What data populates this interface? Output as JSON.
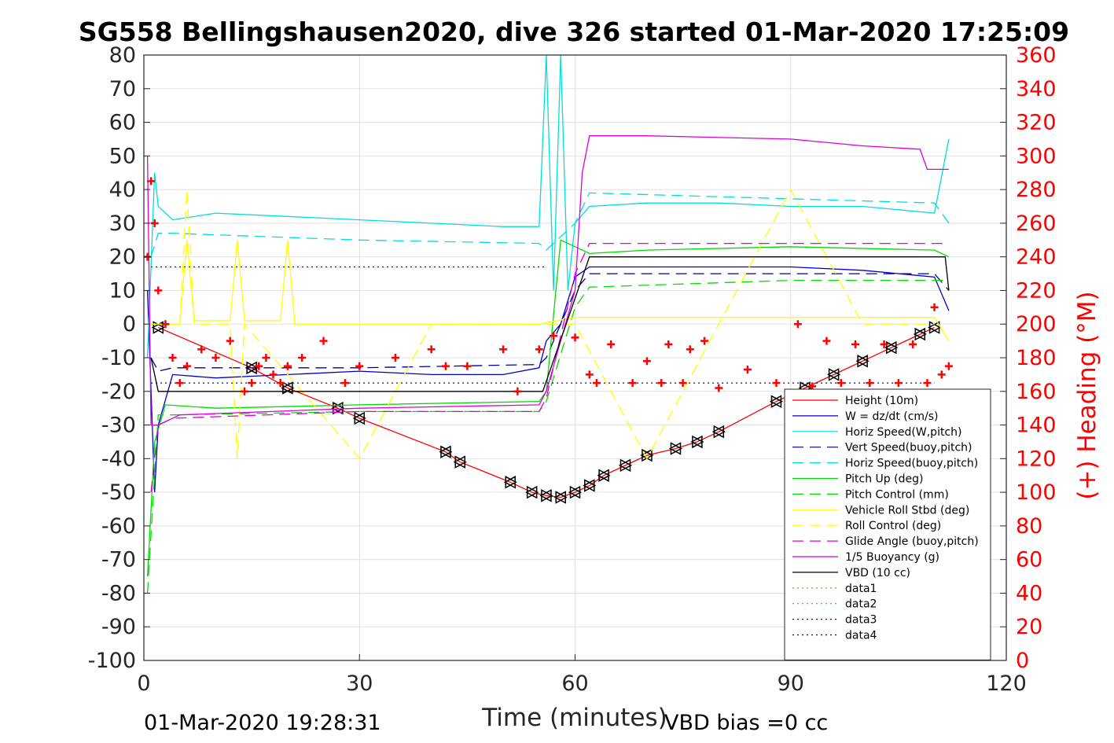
{
  "chart_data": {
    "type": "line",
    "title": "SG558 Bellingshausen2020, dive 326 started 01-Mar-2020 17:25:09",
    "xlabel": "Time (minutes)",
    "ylabel": "",
    "y2label": "(+) Heading (°M)",
    "xlim": [
      0,
      120
    ],
    "ylim": [
      -100,
      80
    ],
    "y2lim": [
      0,
      360
    ],
    "xticks": [
      0,
      30,
      60,
      90,
      120
    ],
    "yticks": [
      80,
      70,
      60,
      50,
      40,
      30,
      20,
      10,
      0,
      -10,
      -20,
      -30,
      -40,
      -50,
      -60,
      -70,
      -80,
      -90,
      -100
    ],
    "y2ticks": [
      360,
      340,
      320,
      300,
      280,
      260,
      240,
      220,
      200,
      180,
      160,
      140,
      120,
      100,
      80,
      60,
      40,
      20,
      0
    ],
    "grid": true,
    "legend_position": "bottom-right",
    "footer_left": "01-Mar-2020 19:28:31",
    "footer_right": "VBD bias =0 cc",
    "series": [
      {
        "name": "Height (10m)",
        "color": "#ff0000",
        "style": "solid",
        "marker": "triangle",
        "x": [
          2,
          15,
          20,
          27,
          30,
          42,
          44,
          51,
          54,
          56,
          58,
          60,
          62,
          64,
          67,
          70,
          74,
          77,
          80,
          88,
          92,
          96,
          100,
          104,
          108,
          110
        ],
        "y": [
          -1,
          -13,
          -19,
          -25,
          -28,
          -38,
          -41,
          -47,
          -50,
          -51,
          -51.5,
          -50,
          -48,
          -45,
          -42,
          -39,
          -37,
          -35,
          -32,
          -23,
          -19,
          -15,
          -11,
          -7,
          -3,
          -1
        ]
      },
      {
        "name": "W = dz/dt (cm/s)",
        "color": "#0000cc",
        "style": "solid",
        "x": [
          0.5,
          1.5,
          2,
          4,
          10,
          20,
          30,
          40,
          50,
          55,
          56,
          58,
          60,
          62,
          70,
          80,
          90,
          100,
          110,
          112
        ],
        "y": [
          10,
          -50,
          -30,
          -15,
          -16,
          -15,
          -14,
          -15,
          -15,
          -13,
          -5,
          0,
          14,
          17,
          17,
          17,
          17,
          16,
          14,
          4
        ]
      },
      {
        "name": "Horiz Speed(W,pitch)",
        "color": "#00dddd",
        "style": "solid",
        "x": [
          0.5,
          1.5,
          2,
          4,
          10,
          20,
          30,
          40,
          50,
          55,
          56,
          57,
          58,
          59,
          60,
          62,
          70,
          80,
          90,
          100,
          110,
          112
        ],
        "y": [
          -10,
          45,
          35,
          31,
          33,
          32,
          31,
          30,
          29,
          29,
          80,
          10,
          80,
          10,
          30,
          35,
          36,
          36,
          35,
          35,
          33,
          55
        ]
      },
      {
        "name": "Vert Speed(buoy,pitch)",
        "color": "#000099",
        "style": "dashed",
        "x": [
          1,
          2,
          4,
          30,
          55,
          56,
          60,
          62,
          110,
          112
        ],
        "y": [
          -10,
          -14,
          -13,
          -13,
          -12,
          -10,
          10,
          15,
          15,
          10
        ]
      },
      {
        "name": "Horiz Speed(buoy,pitch)",
        "color": "#00dddd",
        "style": "dashed",
        "x": [
          1,
          2,
          4,
          30,
          55,
          56,
          60,
          62,
          110,
          112
        ],
        "y": [
          20,
          27,
          27,
          25,
          24,
          22,
          30,
          39,
          36,
          30
        ]
      },
      {
        "name": "Pitch Up (deg)",
        "color": "#00dd00",
        "style": "solid",
        "x": [
          0.5,
          1.5,
          3,
          10,
          30,
          55,
          56,
          58,
          62,
          70,
          90,
          110,
          112
        ],
        "y": [
          -75,
          -35,
          -24,
          -25,
          -24,
          -23,
          -20,
          25,
          21,
          22,
          23,
          22,
          20
        ]
      },
      {
        "name": "Pitch Control (mm)",
        "color": "#00dd00",
        "style": "dashed",
        "x": [
          0.5,
          2,
          4,
          30,
          55,
          56,
          60,
          62,
          90,
          110,
          112
        ],
        "y": [
          -80,
          -27,
          -27,
          -26,
          -26,
          -23,
          5,
          11,
          13,
          13,
          13
        ]
      },
      {
        "name": "Vehicle Roll Stbd (deg)",
        "color": "#ffff00",
        "style": "solid",
        "x": [
          0,
          5,
          6,
          7,
          12,
          13,
          14,
          19,
          20,
          21,
          30,
          40,
          50,
          55,
          60,
          70,
          80,
          90,
          100,
          110,
          112
        ],
        "y": [
          0,
          0,
          25,
          1,
          1,
          25,
          1,
          1,
          25,
          0,
          0,
          0,
          0,
          0,
          2,
          2,
          2,
          2,
          2,
          2,
          -5
        ]
      },
      {
        "name": "Roll Control (deg)",
        "color": "#ffff00",
        "style": "dashed",
        "x": [
          0,
          5,
          6,
          7,
          12,
          13,
          14,
          30,
          40,
          50,
          60,
          70,
          80,
          90,
          100,
          110
        ],
        "y": [
          0,
          0,
          40,
          0,
          0,
          -40,
          0,
          -40,
          0,
          0,
          0,
          -40,
          0,
          40,
          0,
          0
        ]
      },
      {
        "name": "Glide Angle (buoy,pitch)",
        "color": "#dd00dd",
        "style": "dashed",
        "x": [
          1,
          2,
          4,
          30,
          55,
          56,
          60,
          62,
          90,
          110,
          112
        ],
        "y": [
          -50,
          -30,
          -28,
          -26,
          -26,
          -22,
          15,
          24,
          24,
          24,
          24
        ]
      },
      {
        "name": "1/5 Buoyancy (g)",
        "color": "#dd00dd",
        "style": "solid",
        "x": [
          0.5,
          1,
          2,
          5,
          30,
          55,
          56,
          60,
          61,
          62,
          70,
          90,
          100,
          108,
          109,
          112
        ],
        "y": [
          50,
          -30,
          -30,
          -27,
          -25,
          -24,
          -20,
          10,
          45,
          56,
          56,
          55,
          53,
          52,
          46,
          46
        ]
      },
      {
        "name": "VBD (10 cc)",
        "color": "#000000",
        "style": "solid",
        "x": [
          1,
          2,
          55.5,
          62,
          111.5,
          112
        ],
        "y": [
          -10,
          -20,
          -20,
          20,
          20,
          10
        ]
      },
      {
        "name": "data1",
        "color": "#00dd00",
        "style": "dotted",
        "x": [],
        "y": []
      },
      {
        "name": "data2",
        "color": "#00dd00",
        "style": "dotted",
        "x": [],
        "y": []
      },
      {
        "name": "data3",
        "color": "#000099",
        "style": "dotted",
        "x": [
          1,
          56
        ],
        "y": [
          17,
          17
        ]
      },
      {
        "name": "data4",
        "color": "#000099",
        "style": "dotted",
        "x": [
          1,
          110
        ],
        "y": [
          -17.5,
          -17.5
        ]
      }
    ],
    "heading": {
      "color": "#ff0000",
      "marker": "plus",
      "x": [
        0.5,
        1,
        1.5,
        2,
        3,
        4,
        5,
        6,
        8,
        10,
        12,
        14,
        15,
        16,
        17,
        18,
        19,
        20,
        22,
        25,
        28,
        30,
        35,
        40,
        42,
        45,
        50,
        52,
        55,
        57,
        60,
        62,
        63,
        65,
        68,
        70,
        72,
        73,
        75,
        76,
        78,
        80,
        84,
        88,
        91,
        93,
        95,
        97,
        99,
        101,
        103,
        105,
        107,
        109,
        110,
        111,
        112
      ],
      "y": [
        240,
        285,
        260,
        220,
        200,
        180,
        165,
        175,
        185,
        180,
        190,
        160,
        165,
        175,
        180,
        170,
        165,
        175,
        180,
        190,
        165,
        175,
        180,
        185,
        175,
        175,
        185,
        160,
        185,
        193,
        192,
        170,
        165,
        188,
        165,
        178,
        165,
        188,
        165,
        185,
        190,
        162,
        173,
        165,
        200,
        163,
        190,
        165,
        188,
        165,
        188,
        165,
        188,
        165,
        210,
        170,
        175
      ]
    }
  }
}
